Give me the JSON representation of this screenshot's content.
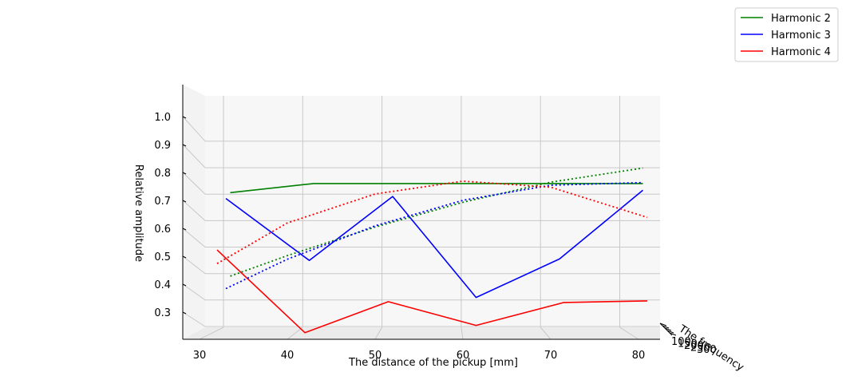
{
  "chart_data": {
    "type": "line",
    "projection": "3d",
    "title": "",
    "xlabel": "The distance of the pickup [mm]",
    "ylabel": "Relative amplitude",
    "zlabel": "The frequency",
    "xticks": [
      "30",
      "40",
      "50",
      "60",
      "70",
      "80"
    ],
    "yticks": [
      "0.3",
      "0.4",
      "0.5",
      "0.6",
      "0.7",
      "0.8",
      "0.9",
      "1.0"
    ],
    "zticks": [
      "100",
      "150",
      "200",
      "250",
      "300"
    ],
    "grid": true,
    "legend_position": "top-right",
    "series": [
      {
        "name": "Harmonic 2",
        "color": "#008000",
        "style": "solid",
        "x": [
          33.5,
          43,
          52,
          62,
          71.5,
          80.5
        ],
        "y": [
          0.933,
          0.978,
          0.978,
          0.978,
          0.978,
          0.978
        ]
      },
      {
        "name": "Harmonic 3",
        "color": "#0000ff",
        "style": "solid",
        "x": [
          33,
          42.5,
          52,
          61.5,
          71,
          80.5
        ],
        "y": [
          0.904,
          0.596,
          0.914,
          0.412,
          0.603,
          0.945
        ]
      },
      {
        "name": "Harmonic 4",
        "color": "#ff0000",
        "style": "solid",
        "x": [
          32,
          42,
          51.5,
          61.5,
          71.5,
          81
        ],
        "y": [
          0.648,
          0.237,
          0.391,
          0.273,
          0.387,
          0.395
        ]
      },
      {
        "name": "",
        "color": "#008000",
        "style": "dotted",
        "x": [
          33.5,
          40,
          50,
          60,
          70,
          80.5
        ],
        "y": [
          0.518,
          0.62,
          0.762,
          0.885,
          0.985,
          1.055
        ]
      },
      {
        "name": "",
        "color": "#0000ff",
        "style": "dotted",
        "x": [
          33,
          40,
          50,
          60,
          70,
          80.5
        ],
        "y": [
          0.456,
          0.602,
          0.768,
          0.895,
          0.97,
          0.983
        ]
      },
      {
        "name": "",
        "color": "#ff0000",
        "style": "dotted",
        "x": [
          32,
          40,
          50,
          60,
          70,
          81
        ],
        "y": [
          0.58,
          0.782,
          0.926,
          0.99,
          0.96,
          0.81
        ]
      }
    ]
  }
}
